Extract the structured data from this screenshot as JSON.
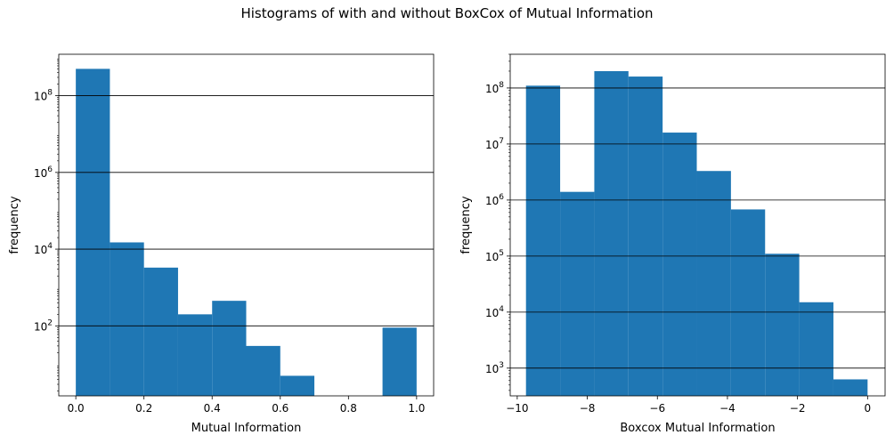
{
  "suptitle": "Histograms of with and without BoxCox of Mutual Information",
  "chart_data": [
    {
      "type": "bar",
      "xlabel": "Mutual Information",
      "ylabel": "frequency",
      "yscale": "log",
      "xlim": [
        -0.05,
        1.05
      ],
      "ylim": [
        1.5,
        1200000000.0
      ],
      "grid": "y-major",
      "color": "#1f77b4",
      "bin_edges": [
        0.0,
        0.1,
        0.2,
        0.3,
        0.4,
        0.5,
        0.6,
        0.7,
        0.8,
        0.9,
        1.0
      ],
      "counts": [
        500000000,
        15000,
        3300,
        200,
        450,
        30,
        5,
        0,
        0,
        90
      ],
      "xticks": [
        {
          "value": 0.0,
          "label": "0.0"
        },
        {
          "value": 0.2,
          "label": "0.2"
        },
        {
          "value": 0.4,
          "label": "0.4"
        },
        {
          "value": 0.6,
          "label": "0.6"
        },
        {
          "value": 0.8,
          "label": "0.8"
        },
        {
          "value": 1.0,
          "label": "1.0"
        }
      ],
      "yticks": [
        {
          "value": 100,
          "base": "10",
          "exp": "2"
        },
        {
          "value": 10000,
          "base": "10",
          "exp": "4"
        },
        {
          "value": 1000000,
          "base": "10",
          "exp": "6"
        },
        {
          "value": 100000000,
          "base": "10",
          "exp": "8"
        }
      ]
    },
    {
      "type": "bar",
      "xlabel": "Boxcox Mutual Information",
      "ylabel": "frequency",
      "yscale": "log",
      "xlim": [
        -10.2,
        0.5
      ],
      "ylim": [
        320,
        400000000.0
      ],
      "grid": "y-major",
      "color": "#1f77b4",
      "bin_edges": [
        -9.75,
        -8.775,
        -7.8,
        -6.825,
        -5.85,
        -4.875,
        -3.9,
        -2.925,
        -1.95,
        -0.975,
        0.0
      ],
      "counts": [
        110000000,
        1400000,
        200000000,
        160000000,
        16000000,
        3300000,
        680000,
        110000,
        15000,
        630
      ],
      "xticks": [
        {
          "value": -10,
          "label": "−10"
        },
        {
          "value": -8,
          "label": "−8"
        },
        {
          "value": -6,
          "label": "−6"
        },
        {
          "value": -4,
          "label": "−4"
        },
        {
          "value": -2,
          "label": "−2"
        },
        {
          "value": 0,
          "label": "0"
        }
      ],
      "yticks": [
        {
          "value": 1000,
          "base": "10",
          "exp": "3"
        },
        {
          "value": 10000,
          "base": "10",
          "exp": "4"
        },
        {
          "value": 100000,
          "base": "10",
          "exp": "5"
        },
        {
          "value": 1000000,
          "base": "10",
          "exp": "6"
        },
        {
          "value": 10000000,
          "base": "10",
          "exp": "7"
        },
        {
          "value": 100000000,
          "base": "10",
          "exp": "8"
        }
      ]
    }
  ]
}
